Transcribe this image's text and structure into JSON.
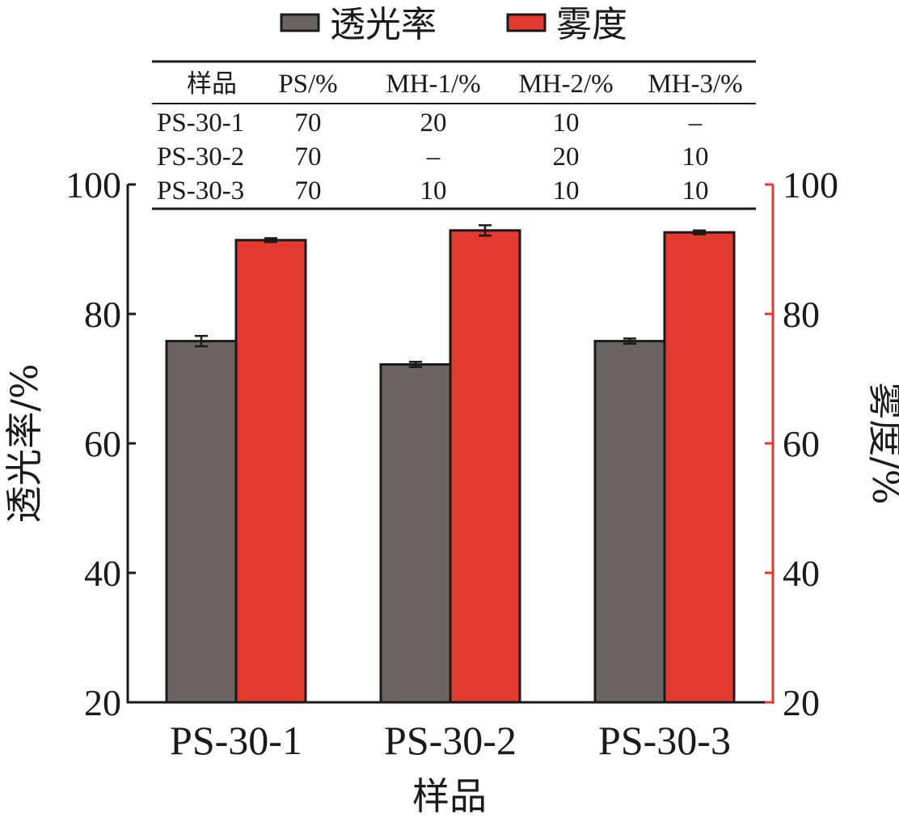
{
  "chart_data": {
    "type": "bar",
    "categories": [
      "PS-30-1",
      "PS-30-2",
      "PS-30-3"
    ],
    "series": [
      {
        "name": "透光率",
        "values": [
          75.8,
          72.2,
          75.8
        ],
        "errors": [
          0.8,
          0.4,
          0.4
        ],
        "color": "#6b6460",
        "axis": "left"
      },
      {
        "name": "雾度",
        "values": [
          91.4,
          92.9,
          92.6
        ],
        "errors": [
          0.3,
          0.8,
          0.3
        ],
        "color": "#e23a2e",
        "axis": "right"
      }
    ],
    "xlabel": "样品",
    "ylabel": "透光率/%",
    "ylabel_right": "雾度/%",
    "ylim": [
      20,
      100
    ],
    "yticks": [
      20,
      40,
      60,
      80,
      100
    ],
    "right_axis_color": "#e23a2e",
    "legend_position": "top",
    "grid": false,
    "table": {
      "headers": [
        "样品",
        "PS/%",
        "MH-1/%",
        "MH-2/%",
        "MH-3/%"
      ],
      "rows": [
        [
          "PS-30-1",
          "70",
          "20",
          "10",
          "–"
        ],
        [
          "PS-30-2",
          "70",
          "–",
          "20",
          "10"
        ],
        [
          "PS-30-3",
          "70",
          "10",
          "10",
          "10"
        ]
      ]
    }
  }
}
